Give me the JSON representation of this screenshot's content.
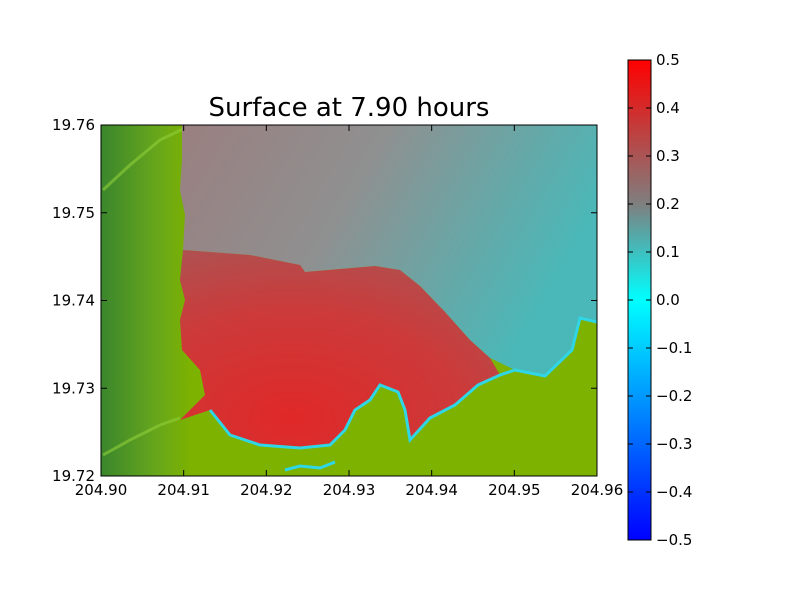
{
  "chart_data": {
    "type": "heatmap",
    "title": "Surface at 7.90 hours",
    "xlabel": "",
    "ylabel": "",
    "xlim": [
      204.9,
      204.96
    ],
    "ylim": [
      19.72,
      19.76
    ],
    "x_ticks": [
      "204.90",
      "204.91",
      "204.92",
      "204.93",
      "204.94",
      "204.95",
      "204.96"
    ],
    "y_ticks": [
      "19.72",
      "19.73",
      "19.74",
      "19.75",
      "19.76"
    ],
    "grid": false,
    "colorbar": {
      "range": [
        -0.5,
        0.5
      ],
      "ticks": [
        "−0.5",
        "−0.4",
        "−0.3",
        "−0.2",
        "−0.1",
        "0.0",
        "0.1",
        "0.2",
        "0.3",
        "0.4",
        "0.5"
      ],
      "colors": [
        {
          "value": -0.5,
          "color": "#0000ff"
        },
        {
          "value": 0.0,
          "color": "#00ffff"
        },
        {
          "value": 0.2,
          "color": "#7f7f7f"
        },
        {
          "value": 0.5,
          "color": "#ff0000"
        }
      ]
    },
    "surface_regions": [
      {
        "name": "offshore water",
        "approx_value": 0.15
      },
      {
        "name": "mid bay water",
        "approx_value": 0.3
      },
      {
        "name": "inner bay water",
        "approx_value": 0.45
      }
    ]
  },
  "colors": {
    "land": "#7db200",
    "land_dark": "#3f8a2a",
    "water_offshore": "#55b4b4",
    "water_mid": "#8f8a8a",
    "water_bay": "#d43030",
    "shore_cyan": "#2fd6e6"
  }
}
